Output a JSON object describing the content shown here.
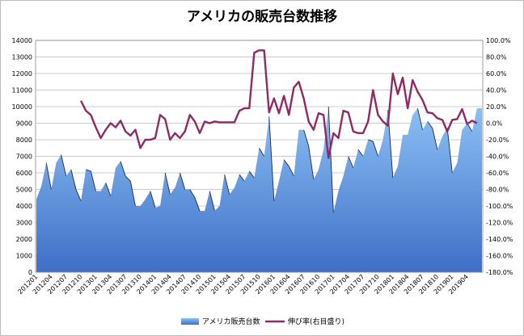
{
  "chart_data": {
    "type": "area",
    "title": "アメリカの販売台数推移",
    "xlabel": "",
    "ylabel": "",
    "ylim": [
      0,
      14000
    ],
    "y2lim": [
      -180,
      100
    ],
    "y_ticks": [
      0,
      1000,
      2000,
      3000,
      4000,
      5000,
      6000,
      7000,
      8000,
      9000,
      10000,
      11000,
      12000,
      13000,
      14000
    ],
    "y2_ticks": [
      "100.0%",
      "80.0%",
      "60.0%",
      "40.0%",
      "20.0%",
      "0.0%",
      "-20.0%",
      "-40.0%",
      "-60.0%",
      "-80.0%",
      "-100.0%",
      "-120.0%",
      "-140.0%",
      "-160.0%",
      "-180.0%"
    ],
    "x_tick_labels": [
      "201201",
      "201204",
      "201207",
      "201210",
      "201301",
      "201304",
      "201307",
      "201310",
      "201401",
      "201404",
      "201407",
      "201410",
      "201501",
      "201504",
      "201507",
      "201510",
      "201601",
      "201604",
      "201607",
      "201610",
      "201701",
      "201704",
      "201707",
      "201710",
      "201801",
      "201804",
      "201807",
      "201810",
      "201901",
      "201904"
    ],
    "legend": {
      "position": "bottom"
    },
    "grid": true,
    "series": [
      {
        "name": "アメリカ販売台数",
        "axis": "left",
        "color": "#7fb0e8",
        "values": [
          4400,
          5200,
          6600,
          5000,
          6600,
          7100,
          5800,
          6200,
          5000,
          4300,
          6200,
          6100,
          4900,
          4900,
          5400,
          4600,
          6300,
          6700,
          5800,
          5500,
          4000,
          4000,
          4400,
          4900,
          3900,
          4000,
          6000,
          4700,
          5100,
          6000,
          5000,
          5000,
          4500,
          3700,
          3700,
          4900,
          3700,
          4000,
          5900,
          4700,
          5100,
          5900,
          5500,
          6100,
          5700,
          7500,
          7000,
          9400,
          4300,
          5500,
          6800,
          6400,
          5800,
          8600,
          8600,
          7600,
          5600,
          6200,
          7400,
          10000,
          3600,
          4900,
          5800,
          7000,
          6300,
          7400,
          7000,
          8000,
          7900,
          7000,
          8000,
          9800,
          5700,
          6400,
          8300,
          8300,
          9500,
          9900,
          8600,
          9100,
          8700,
          7400,
          8200,
          8700,
          6000,
          6600,
          8600,
          9000,
          8500,
          9900,
          9900
        ]
      },
      {
        "name": "伸び率(右目盛り)",
        "axis": "right",
        "color": "#8e2a64",
        "start_index": 9,
        "values": [
          27,
          15,
          10,
          -5,
          -18,
          -8,
          0,
          -5,
          3,
          -10,
          -15,
          -8,
          -30,
          -20,
          -20,
          -18,
          10,
          5,
          -20,
          -12,
          -18,
          -10,
          10,
          2,
          -12,
          2,
          0,
          2,
          1,
          1,
          1,
          1,
          15,
          18,
          18,
          85,
          88,
          88,
          13,
          30,
          12,
          33,
          10,
          43,
          50,
          30,
          2,
          -8,
          12,
          10,
          -42,
          -12,
          -18,
          15,
          13,
          -10,
          -12,
          -12,
          2,
          40,
          10,
          2,
          -3,
          60,
          35,
          55,
          18,
          52,
          38,
          28,
          13,
          12,
          6,
          4,
          -10,
          4,
          5,
          17,
          -1,
          3,
          0
        ]
      }
    ]
  }
}
